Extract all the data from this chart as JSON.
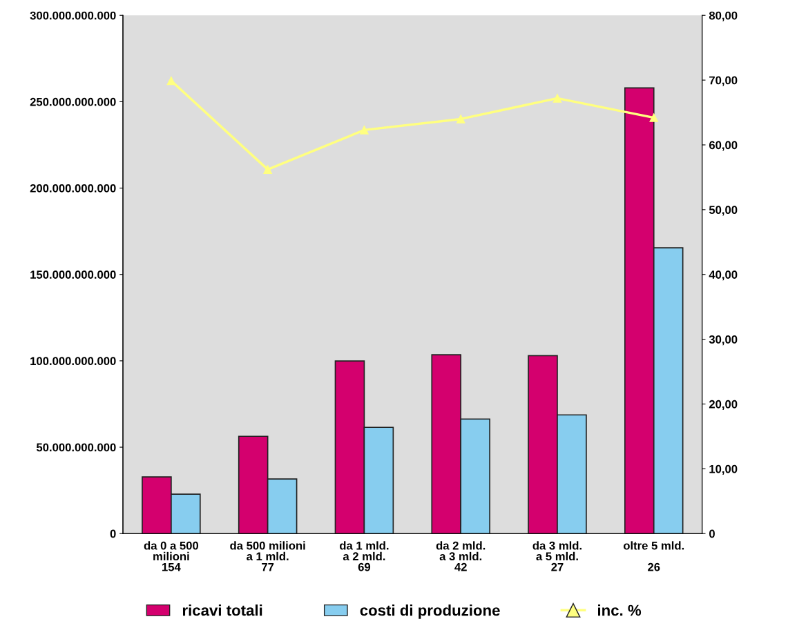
{
  "chart_data": {
    "type": "bar",
    "categories": [
      "da 0 a 500\nmilioni\n154",
      "da 500 milioni\na 1 mld.\n77",
      "da 1 mld.\na 2 mld.\n69",
      "da 2 mld.\na 3 mld.\n42",
      "da 3 mld.\na 5 mld.\n27",
      "oltre 5 mld.\n\n26"
    ],
    "series": [
      {
        "name": "ricavi totali",
        "color": "#d4006e",
        "values": [
          32800000000,
          56300000000,
          99900000000,
          103500000000,
          103000000000,
          258000000000
        ]
      },
      {
        "name": "costi di produzione",
        "color": "#87cdef",
        "values": [
          22800000000,
          31600000000,
          61500000000,
          66300000000,
          68700000000,
          165400000000
        ]
      },
      {
        "name": "inc. %",
        "type": "line",
        "axis": "y2",
        "color": "#ffff80",
        "marker": "triangle",
        "values": [
          69.9,
          56.2,
          62.3,
          64.0,
          67.2,
          64.2
        ]
      }
    ],
    "ylim": [
      0,
      300000000000
    ],
    "yticks": [
      {
        "value": 0,
        "label": "0"
      },
      {
        "value": 50000000000,
        "label": "50.000.000.000"
      },
      {
        "value": 100000000000,
        "label": "100.000.000.000"
      },
      {
        "value": 150000000000,
        "label": "150.000.000.000"
      },
      {
        "value": 200000000000,
        "label": "200.000.000.000"
      },
      {
        "value": 250000000000,
        "label": "250.000.000.000"
      },
      {
        "value": 300000000000,
        "label": "300.000.000.000"
      }
    ],
    "y2lim": [
      0,
      80
    ],
    "y2ticks": [
      {
        "value": 0,
        "label": "0"
      },
      {
        "value": 10,
        "label": "10,00"
      },
      {
        "value": 20,
        "label": "20,00"
      },
      {
        "value": 30,
        "label": "30,00"
      },
      {
        "value": 40,
        "label": "40,00"
      },
      {
        "value": 50,
        "label": "50,00"
      },
      {
        "value": 60,
        "label": "60,00"
      },
      {
        "value": 70,
        "label": "70,00"
      },
      {
        "value": 80,
        "label": "80,00"
      }
    ],
    "grid": false,
    "legend": "bottom"
  }
}
